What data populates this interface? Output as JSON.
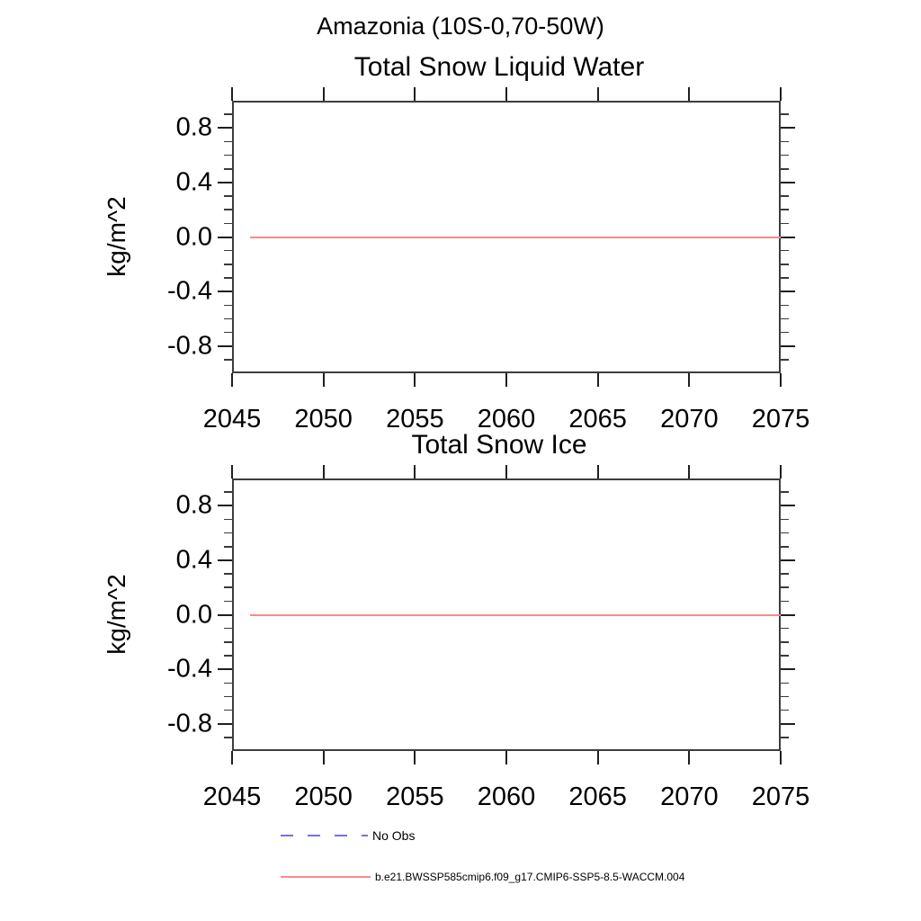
{
  "figure": {
    "suptitle": "Amazonia (10S-0,70-50W)",
    "background_color": "#ffffff",
    "frame_color": "#3d3d3d",
    "tick_color": "#1f1f1f",
    "text_color": "#000000"
  },
  "chart_data": [
    {
      "type": "line",
      "title": "Total Snow Liquid Water",
      "xlabel": "",
      "ylabel": "kg/m^2",
      "xlim": [
        2045,
        2075
      ],
      "ylim": [
        -1.0,
        1.0
      ],
      "xticks": [
        2045,
        2050,
        2055,
        2060,
        2065,
        2070,
        2075
      ],
      "xtick_labels": [
        "2045",
        "2050",
        "2055",
        "2060",
        "2065",
        "2070",
        "2075"
      ],
      "yticks": [
        -0.8,
        -0.4,
        0.0,
        0.4,
        0.8
      ],
      "ytick_labels": [
        "-0.8",
        "-0.4",
        "0.0",
        "0.4",
        "0.8"
      ],
      "yminor_step": 0.1,
      "grid": false,
      "series": [
        {
          "name": "b.e21.BWSSP585cmip6.f09_g17.CMIP6-SSP5-8.5-WACCM.004",
          "color": "#f98a8a",
          "line_style": "solid",
          "x": [
            2046,
            2075
          ],
          "y": [
            0.0,
            0.0
          ]
        }
      ]
    },
    {
      "type": "line",
      "title": "Total Snow Ice",
      "xlabel": "",
      "ylabel": "kg/m^2",
      "xlim": [
        2045,
        2075
      ],
      "ylim": [
        -1.0,
        1.0
      ],
      "xticks": [
        2045,
        2050,
        2055,
        2060,
        2065,
        2070,
        2075
      ],
      "xtick_labels": [
        "2045",
        "2050",
        "2055",
        "2060",
        "2065",
        "2070",
        "2075"
      ],
      "yticks": [
        -0.8,
        -0.4,
        0.0,
        0.4,
        0.8
      ],
      "ytick_labels": [
        "-0.8",
        "-0.4",
        "0.0",
        "0.4",
        "0.8"
      ],
      "yminor_step": 0.1,
      "grid": false,
      "series": [
        {
          "name": "b.e21.BWSSP585cmip6.f09_g17.CMIP6-SSP5-8.5-WACCM.004",
          "color": "#f98a8a",
          "line_style": "solid",
          "x": [
            2046,
            2075
          ],
          "y": [
            0.0,
            0.0
          ]
        }
      ]
    }
  ],
  "legend": {
    "position": "bottom-left",
    "items": [
      {
        "label": "No Obs",
        "color": "#7272de",
        "line_style": "dashed"
      },
      {
        "label": "b.e21.BWSSP585cmip6.f09_g17.CMIP6-SSP5-8.5-WACCM.004",
        "color": "#f98a8a",
        "line_style": "solid"
      }
    ]
  }
}
